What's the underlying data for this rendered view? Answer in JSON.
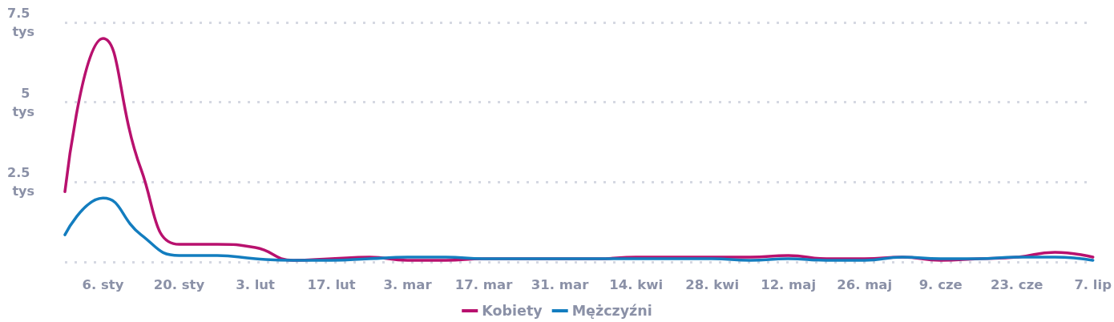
{
  "chart_data": {
    "type": "line",
    "categories": [
      null,
      "6. sty",
      null,
      "20. sty",
      null,
      "3. lut",
      null,
      "17. lut",
      null,
      "3. mar",
      null,
      "17. mar",
      null,
      "31. mar",
      null,
      "14. kwi",
      null,
      "28. kwi",
      null,
      "12. maj",
      null,
      "26. maj",
      null,
      "9. cze",
      null,
      "23. cze",
      null,
      "7. lip"
    ],
    "series": [
      {
        "name": "Kobiety",
        "color": "#b8116e",
        "values": [
          2.2,
          7,
          2.9,
          0.55,
          0.55,
          0.45,
          0.05,
          0.1,
          0.15,
          0.05,
          0.05,
          0.1,
          0.1,
          0.1,
          0.1,
          0.15,
          0.15,
          0.15,
          0.15,
          0.2,
          0.1,
          0.1,
          0.15,
          0.05,
          0.1,
          0.15,
          0.3,
          0.15
        ]
      },
      {
        "name": "Mężczyźni",
        "color": "#137dbf",
        "values": [
          0.85,
          2,
          0.85,
          0.2,
          0.2,
          0.1,
          0.05,
          0.05,
          0.1,
          0.15,
          0.15,
          0.1,
          0.1,
          0.1,
          0.1,
          0.1,
          0.1,
          0.1,
          0.05,
          0.1,
          0.05,
          0.05,
          0.15,
          0.1,
          0.1,
          0.15,
          0.15,
          0.05
        ]
      }
    ],
    "ylim": [
      0,
      7.5
    ],
    "yticks": [
      {
        "value": 0,
        "label": null
      },
      {
        "value": 2.5,
        "label": "2.5 tys"
      },
      {
        "value": 5,
        "label": "5 tys"
      },
      {
        "value": 7.5,
        "label": "7.5 tys"
      }
    ],
    "grid": "y",
    "legend": "bottom",
    "marker": "none",
    "line_style": "solid"
  }
}
